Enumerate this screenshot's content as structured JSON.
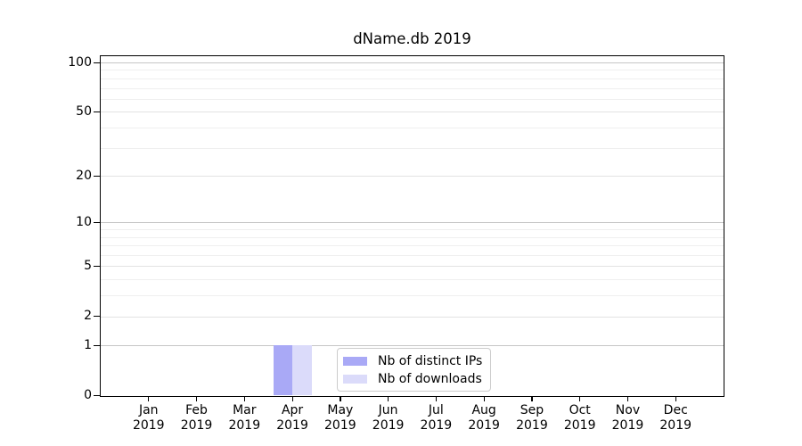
{
  "chart_data": {
    "type": "bar",
    "title": "dName.db 2019",
    "categories": [
      "Jan",
      "Feb",
      "Mar",
      "Apr",
      "May",
      "Jun",
      "Jul",
      "Aug",
      "Sep",
      "Oct",
      "Nov",
      "Dec"
    ],
    "category_year": "2019",
    "series": [
      {
        "name": "Nb of distinct IPs",
        "color": "#a9a9f6",
        "values": [
          0,
          0,
          0,
          1,
          0,
          0,
          0,
          0,
          0,
          0,
          0,
          0
        ]
      },
      {
        "name": "Nb of downloads",
        "color": "#dbdbfa",
        "values": [
          0,
          0,
          0,
          1,
          0,
          0,
          0,
          0,
          0,
          0,
          0,
          0
        ]
      }
    ],
    "y_axis": {
      "scale": "log1p",
      "major_ticks": [
        0,
        1,
        2,
        5,
        10,
        20,
        50,
        100
      ],
      "minor_ticks": [
        3,
        4,
        6,
        7,
        8,
        9,
        30,
        40,
        60,
        70,
        80,
        90
      ],
      "decade_ticks": [
        1,
        10,
        100
      ],
      "ylim": [
        0,
        109
      ]
    },
    "legend": {
      "position": "lower center"
    },
    "grid": "on",
    "colors": {
      "axis": "#000000",
      "grid_minor": "#efefef",
      "grid_major": "#e2e2e2",
      "grid_decade": "#c6c6c6",
      "background": "#ffffff"
    }
  }
}
